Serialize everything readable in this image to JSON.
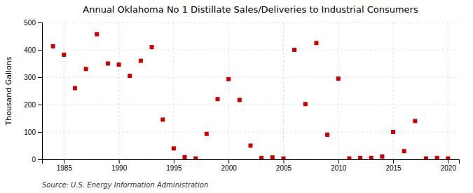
{
  "chart_data": {
    "type": "scatter",
    "title": "Annual Oklahoma No 1 Distillate Sales/Deliveries to Industrial Consumers",
    "y_label": "Thousand Gallons",
    "source": "Source: U.S. Energy Information Administration",
    "x": [
      1984,
      1985,
      1986,
      1987,
      1988,
      1989,
      1990,
      1991,
      1992,
      1993,
      1994,
      1995,
      1996,
      1997,
      1998,
      1999,
      2000,
      2001,
      2002,
      2003,
      2004,
      2005,
      2006,
      2007,
      2008,
      2009,
      2010,
      2011,
      2012,
      2013,
      2014,
      2015,
      2016,
      2017,
      2018,
      2019,
      2020
    ],
    "values": [
      413,
      382,
      260,
      330,
      457,
      350,
      346,
      305,
      360,
      410,
      145,
      40,
      8,
      3,
      93,
      220,
      293,
      217,
      50,
      5,
      7,
      3,
      400,
      202,
      425,
      90,
      295,
      3,
      5,
      5,
      10,
      100,
      30,
      140,
      3,
      5,
      3
    ],
    "color": "#cc0000",
    "marker": "square",
    "xlim": [
      1983,
      2021
    ],
    "ylim": [
      0,
      500
    ],
    "xticks": [
      1985,
      1990,
      1995,
      2000,
      2005,
      2010,
      2015,
      2020
    ],
    "yticks": [
      0,
      100,
      200,
      300,
      400,
      500
    ],
    "grid": true
  }
}
